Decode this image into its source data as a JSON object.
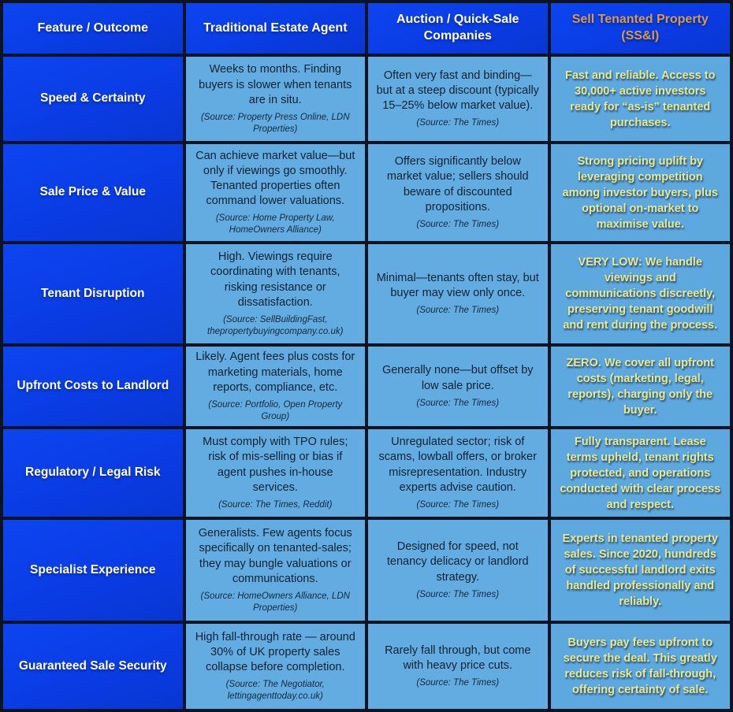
{
  "colors": {
    "header_blue": "#0a3ce4",
    "body_light_blue": "#63ace2",
    "ssi_light_blue": "#5ea8e0",
    "border_navy": "#0b1422",
    "header_white": "#ffffff",
    "ssi_header_orange": "#d79a50",
    "ssi_body_yellow": "#e9e88b",
    "body_dark_text": "#0f2233"
  },
  "table": {
    "headers": [
      {
        "label": "Feature / Outcome"
      },
      {
        "label": "Traditional Estate Agent"
      },
      {
        "label": "Auction / Quick-Sale Companies"
      },
      {
        "label": "Sell Tenanted Property (SS&I)"
      }
    ],
    "rows": [
      {
        "feature": "Speed & Certainty",
        "traditional": {
          "text": "Weeks to months. Finding buyers is slower when tenants are in situ.",
          "source": "(Source: Property Press Online, LDN Properties)"
        },
        "auction": {
          "text": "Often very fast and binding—but at a steep discount (typically 15–25% below market value).",
          "source": "(Source: The Times)"
        },
        "ssi": {
          "text": "Fast and reliable. Access to 30,000+ active investors ready for “as-is” tenanted purchases."
        }
      },
      {
        "feature": "Sale Price & Value",
        "traditional": {
          "text": "Can achieve market value—but only if viewings go smoothly. Tenanted properties often command lower valuations.",
          "source": "(Source: Home Property Law, HomeOwners Alliance)"
        },
        "auction": {
          "text": "Offers significantly below market value; sellers should beware of discounted propositions.",
          "source": "(Source: The Times)"
        },
        "ssi": {
          "text": "Strong pricing uplift by leveraging competition among investor buyers, plus optional on-market to maximise value."
        }
      },
      {
        "feature": "Tenant Disruption",
        "traditional": {
          "text": "High. Viewings require coordinating with tenants, risking resistance or dissatisfaction.",
          "source": "(Source: SellBuildingFast, thepropertybuyingcompany.co.uk)"
        },
        "auction": {
          "text": "Minimal—tenants often stay, but buyer may view only once.",
          "source": "(Source: The Times)"
        },
        "ssi": {
          "text": "VERY LOW: We handle viewings and communications discreetly, preserving tenant goodwill and rent during the process."
        }
      },
      {
        "feature": "Upfront Costs to Landlord",
        "traditional": {
          "text": "Likely. Agent fees plus costs for marketing materials, home reports, compliance, etc.",
          "source": "(Source: Portfolio, Open Property Group)"
        },
        "auction": {
          "text": "Generally none—but offset by low sale price.",
          "source": "(Source: The Times)"
        },
        "ssi": {
          "text": "ZERO. We cover all upfront costs (marketing, legal, reports), charging only the buyer."
        }
      },
      {
        "feature": "Regulatory / Legal Risk",
        "traditional": {
          "text": "Must comply with TPO rules; risk of mis-selling or bias if agent pushes in-house services.",
          "source": "(Source: The Times, Reddit)"
        },
        "auction": {
          "text": "Unregulated sector; risk of scams, lowball offers, or broker misrepresentation. Industry experts advise caution.",
          "source": "(Source: The Times)"
        },
        "ssi": {
          "text": "Fully transparent. Lease terms upheld, tenant rights protected, and operations conducted with clear process and respect."
        }
      },
      {
        "feature": "Specialist Experience",
        "traditional": {
          "text": "Generalists. Few agents focus specifically on tenanted-sales; they may bungle valuations or communications.",
          "source": "(Source: HomeOwners Alliance, LDN Properties)"
        },
        "auction": {
          "text": "Designed for speed, not tenancy delicacy or landlord strategy.",
          "source": "(Source: The Times)"
        },
        "ssi": {
          "text": "Experts in tenanted property sales. Since 2020, hundreds of successful landlord exits handled professionally and reliably."
        }
      },
      {
        "feature": "Guaranteed Sale Security",
        "traditional": {
          "text": "High fall-through rate — around 30% of UK property sales collapse before completion.",
          "source": "(Source: The Negotiator, lettingagenttoday.co.uk)"
        },
        "auction": {
          "text": "Rarely fall through, but come with heavy price cuts.",
          "source": "(Source: The Times)"
        },
        "ssi": {
          "text": "Buyers pay fees upfront to secure the deal. This greatly reduces risk of fall-through, offering certainty of sale."
        }
      }
    ]
  }
}
